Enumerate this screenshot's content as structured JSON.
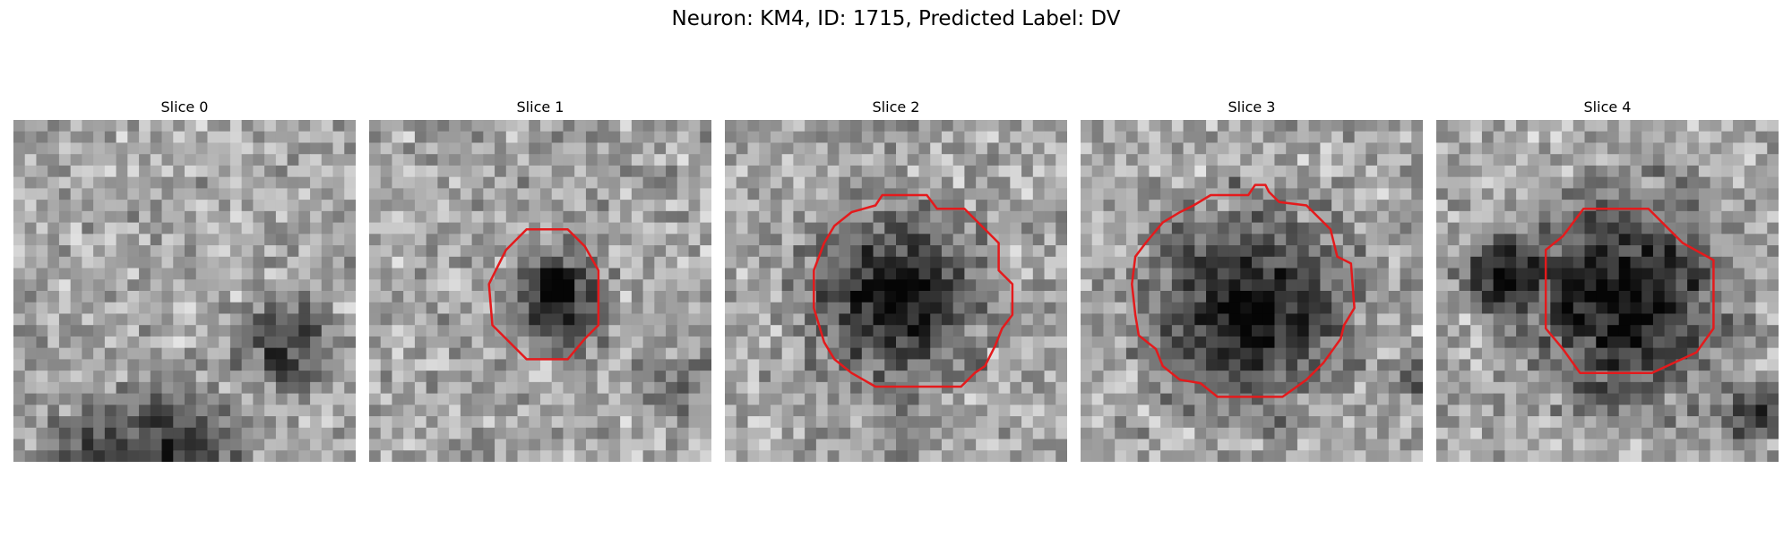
{
  "figure": {
    "title": "Neuron: KM4, ID: 1715, Predicted Label: DV"
  },
  "panels": [
    {
      "title": "Slice 0",
      "has_contour": false,
      "seed": 11,
      "blob": [
        0,
        0,
        0
      ],
      "dark_patches": [
        [
          0.8,
          0.65,
          0.12,
          0.45
        ],
        [
          0.45,
          0.97,
          0.18,
          0.55
        ],
        [
          0.2,
          0.95,
          0.1,
          0.35
        ]
      ],
      "contour": [],
      "contour_color": "#e41a1c"
    },
    {
      "title": "Slice 1",
      "has_contour": true,
      "seed": 23,
      "blob": [
        0.55,
        0.52,
        0.15
      ],
      "dark_patches": [
        [
          0.9,
          0.78,
          0.1,
          0.25
        ]
      ],
      "contour": [
        [
          0.46,
          0.32
        ],
        [
          0.58,
          0.32
        ],
        [
          0.63,
          0.37
        ],
        [
          0.67,
          0.44
        ],
        [
          0.67,
          0.6
        ],
        [
          0.63,
          0.64
        ],
        [
          0.58,
          0.7
        ],
        [
          0.46,
          0.7
        ],
        [
          0.4,
          0.64
        ],
        [
          0.36,
          0.6
        ],
        [
          0.35,
          0.48
        ],
        [
          0.37,
          0.44
        ],
        [
          0.4,
          0.38
        ]
      ],
      "contour_color": "#e41a1c"
    },
    {
      "title": "Slice 2",
      "has_contour": true,
      "seed": 37,
      "blob": [
        0.5,
        0.52,
        0.26
      ],
      "dark_patches": [
        [
          0.5,
          0.9,
          0.08,
          0.3
        ]
      ],
      "contour": [
        [
          0.37,
          0.27
        ],
        [
          0.44,
          0.25
        ],
        [
          0.46,
          0.22
        ],
        [
          0.59,
          0.22
        ],
        [
          0.62,
          0.26
        ],
        [
          0.7,
          0.26
        ],
        [
          0.75,
          0.31
        ],
        [
          0.8,
          0.36
        ],
        [
          0.8,
          0.44
        ],
        [
          0.84,
          0.48
        ],
        [
          0.84,
          0.57
        ],
        [
          0.81,
          0.61
        ],
        [
          0.79,
          0.66
        ],
        [
          0.77,
          0.7
        ],
        [
          0.76,
          0.72
        ],
        [
          0.73,
          0.74
        ],
        [
          0.69,
          0.78
        ],
        [
          0.44,
          0.78
        ],
        [
          0.37,
          0.74
        ],
        [
          0.32,
          0.7
        ],
        [
          0.29,
          0.65
        ],
        [
          0.26,
          0.55
        ],
        [
          0.26,
          0.44
        ],
        [
          0.29,
          0.36
        ],
        [
          0.32,
          0.31
        ]
      ],
      "contour_color": "#e41a1c"
    },
    {
      "title": "Slice 3",
      "has_contour": true,
      "seed": 53,
      "blob": [
        0.5,
        0.55,
        0.3
      ],
      "dark_patches": [
        [
          0.97,
          0.75,
          0.05,
          0.4
        ]
      ],
      "contour": [
        [
          0.29,
          0.27
        ],
        [
          0.33,
          0.25
        ],
        [
          0.38,
          0.22
        ],
        [
          0.49,
          0.22
        ],
        [
          0.51,
          0.19
        ],
        [
          0.54,
          0.19
        ],
        [
          0.55,
          0.21
        ],
        [
          0.58,
          0.24
        ],
        [
          0.66,
          0.25
        ],
        [
          0.73,
          0.32
        ],
        [
          0.75,
          0.4
        ],
        [
          0.79,
          0.42
        ],
        [
          0.8,
          0.55
        ],
        [
          0.77,
          0.6
        ],
        [
          0.76,
          0.64
        ],
        [
          0.71,
          0.71
        ],
        [
          0.66,
          0.76
        ],
        [
          0.59,
          0.81
        ],
        [
          0.4,
          0.81
        ],
        [
          0.35,
          0.77
        ],
        [
          0.29,
          0.76
        ],
        [
          0.24,
          0.72
        ],
        [
          0.22,
          0.67
        ],
        [
          0.17,
          0.63
        ],
        [
          0.16,
          0.57
        ],
        [
          0.15,
          0.48
        ],
        [
          0.16,
          0.4
        ],
        [
          0.19,
          0.36
        ],
        [
          0.24,
          0.3
        ]
      ],
      "contour_color": "#e41a1c"
    },
    {
      "title": "Slice 4",
      "has_contour": true,
      "seed": 71,
      "blob": [
        0.55,
        0.52,
        0.32
      ],
      "dark_patches": [
        [
          0.18,
          0.45,
          0.1,
          0.6
        ],
        [
          0.92,
          0.85,
          0.08,
          0.5
        ]
      ],
      "contour": [
        [
          0.43,
          0.26
        ],
        [
          0.62,
          0.26
        ],
        [
          0.72,
          0.36
        ],
        [
          0.81,
          0.41
        ],
        [
          0.81,
          0.61
        ],
        [
          0.76,
          0.68
        ],
        [
          0.63,
          0.74
        ],
        [
          0.42,
          0.74
        ],
        [
          0.37,
          0.67
        ],
        [
          0.32,
          0.61
        ],
        [
          0.32,
          0.38
        ],
        [
          0.37,
          0.34
        ]
      ],
      "contour_color": "#e41a1c"
    }
  ]
}
